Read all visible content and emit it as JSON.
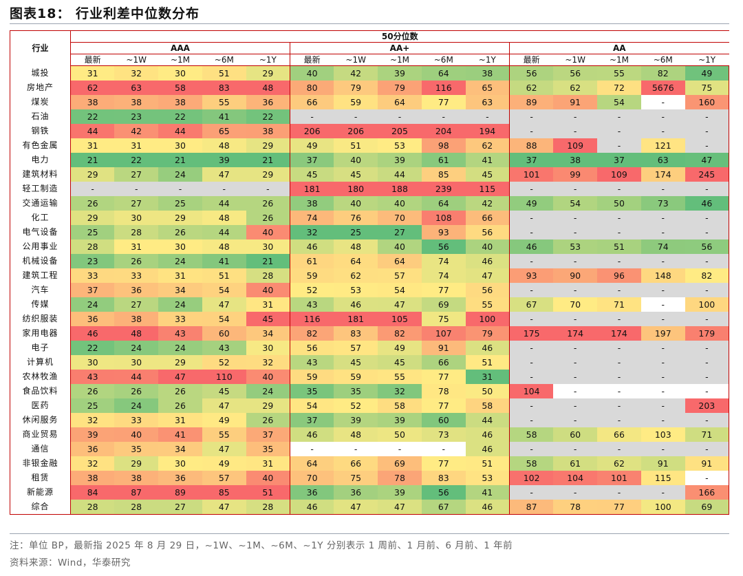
{
  "title": "图表18： 行业利差中位数分布",
  "table": {
    "top_header": "50分位数",
    "industry_header": "行业",
    "groups": [
      "AAA",
      "AA+",
      "AA"
    ],
    "sub_headers": [
      "最新",
      "~1W",
      "~1M",
      "~6M",
      "~1Y"
    ],
    "rows": [
      {
        "name": "城投",
        "AAA": [
          "31",
          "32",
          "30",
          "51",
          "29"
        ],
        "AAp": [
          "40",
          "42",
          "39",
          "64",
          "38"
        ],
        "AA": [
          "56",
          "56",
          "55",
          "82",
          "49"
        ]
      },
      {
        "name": "房地产",
        "AAA": [
          "62",
          "63",
          "58",
          "83",
          "48"
        ],
        "AAp": [
          "80",
          "79",
          "79",
          "116",
          "65"
        ],
        "AA": [
          "62",
          "62",
          "72",
          "5676",
          "75"
        ]
      },
      {
        "name": "煤炭",
        "AAA": [
          "38",
          "38",
          "38",
          "55",
          "36"
        ],
        "AAp": [
          "66",
          "59",
          "64",
          "77",
          "63"
        ],
        "AA": [
          "89",
          "91",
          "54",
          "-",
          "160"
        ]
      },
      {
        "name": "石油",
        "AAA": [
          "22",
          "23",
          "22",
          "41",
          "22"
        ],
        "AAp": [
          "-",
          "-",
          "-",
          "-",
          "-"
        ],
        "AA": [
          "-",
          "-",
          "-",
          "-",
          "-"
        ]
      },
      {
        "name": "钢铁",
        "AAA": [
          "44",
          "42",
          "44",
          "65",
          "38"
        ],
        "AAp": [
          "206",
          "206",
          "205",
          "204",
          "194"
        ],
        "AA": [
          "-",
          "-",
          "-",
          "-",
          "-"
        ]
      },
      {
        "name": "有色金属",
        "AAA": [
          "31",
          "31",
          "30",
          "48",
          "29"
        ],
        "AAp": [
          "49",
          "51",
          "53",
          "98",
          "62"
        ],
        "AA": [
          "88",
          "109",
          "-",
          "121",
          "-"
        ]
      },
      {
        "name": "电力",
        "AAA": [
          "21",
          "22",
          "21",
          "39",
          "21"
        ],
        "AAp": [
          "37",
          "40",
          "39",
          "61",
          "41"
        ],
        "AA": [
          "37",
          "38",
          "37",
          "63",
          "47"
        ]
      },
      {
        "name": "建筑材料",
        "AAA": [
          "29",
          "27",
          "24",
          "47",
          "29"
        ],
        "AAp": [
          "45",
          "45",
          "44",
          "85",
          "45"
        ],
        "AA": [
          "101",
          "99",
          "109",
          "174",
          "245"
        ]
      },
      {
        "name": "轻工制造",
        "AAA": [
          "-",
          "-",
          "-",
          "-",
          "-"
        ],
        "AAp": [
          "181",
          "180",
          "188",
          "239",
          "115"
        ],
        "AA": [
          "-",
          "-",
          "-",
          "-",
          "-"
        ]
      },
      {
        "name": "交通运输",
        "AAA": [
          "26",
          "27",
          "25",
          "44",
          "26"
        ],
        "AAp": [
          "38",
          "40",
          "40",
          "64",
          "42"
        ],
        "AA": [
          "49",
          "54",
          "50",
          "73",
          "46"
        ]
      },
      {
        "name": "化工",
        "AAA": [
          "29",
          "30",
          "29",
          "48",
          "26"
        ],
        "AAp": [
          "74",
          "76",
          "70",
          "108",
          "66"
        ],
        "AA": [
          "-",
          "-",
          "-",
          "-",
          "-"
        ]
      },
      {
        "name": "电气设备",
        "AAA": [
          "25",
          "28",
          "26",
          "44",
          "40"
        ],
        "AAp": [
          "32",
          "25",
          "27",
          "93",
          "56"
        ],
        "AA": [
          "-",
          "-",
          "-",
          "-",
          "-"
        ]
      },
      {
        "name": "公用事业",
        "AAA": [
          "28",
          "31",
          "30",
          "48",
          "30"
        ],
        "AAp": [
          "46",
          "48",
          "40",
          "56",
          "40"
        ],
        "AA": [
          "46",
          "53",
          "51",
          "74",
          "56"
        ]
      },
      {
        "name": "机械设备",
        "AAA": [
          "23",
          "26",
          "24",
          "41",
          "21"
        ],
        "AAp": [
          "61",
          "64",
          "64",
          "74",
          "46"
        ],
        "AA": [
          "-",
          "-",
          "-",
          "-",
          "-"
        ]
      },
      {
        "name": "建筑工程",
        "AAA": [
          "33",
          "33",
          "31",
          "51",
          "28"
        ],
        "AAp": [
          "59",
          "62",
          "57",
          "74",
          "47"
        ],
        "AA": [
          "93",
          "90",
          "96",
          "148",
          "82"
        ]
      },
      {
        "name": "汽车",
        "AAA": [
          "37",
          "36",
          "34",
          "54",
          "40"
        ],
        "AAp": [
          "52",
          "53",
          "54",
          "77",
          "56"
        ],
        "AA": [
          "-",
          "-",
          "-",
          "-",
          "-"
        ]
      },
      {
        "name": "传媒",
        "AAA": [
          "24",
          "27",
          "24",
          "47",
          "31"
        ],
        "AAp": [
          "43",
          "46",
          "47",
          "69",
          "55"
        ],
        "AA": [
          "67",
          "70",
          "71",
          "-",
          "100"
        ]
      },
      {
        "name": "纺织服装",
        "AAA": [
          "36",
          "38",
          "33",
          "54",
          "45"
        ],
        "AAp": [
          "116",
          "181",
          "105",
          "75",
          "100"
        ],
        "AA": [
          "-",
          "-",
          "-",
          "-",
          "-"
        ]
      },
      {
        "name": "家用电器",
        "AAA": [
          "46",
          "48",
          "43",
          "60",
          "34"
        ],
        "AAp": [
          "82",
          "83",
          "82",
          "107",
          "79"
        ],
        "AA": [
          "175",
          "174",
          "174",
          "197",
          "179"
        ]
      },
      {
        "name": "电子",
        "AAA": [
          "22",
          "24",
          "24",
          "43",
          "30"
        ],
        "AAp": [
          "56",
          "57",
          "49",
          "91",
          "46"
        ],
        "AA": [
          "-",
          "-",
          "-",
          "-",
          "-"
        ]
      },
      {
        "name": "计算机",
        "AAA": [
          "30",
          "30",
          "29",
          "52",
          "32"
        ],
        "AAp": [
          "43",
          "45",
          "45",
          "66",
          "51"
        ],
        "AA": [
          "-",
          "-",
          "-",
          "-",
          "-"
        ]
      },
      {
        "name": "农林牧渔",
        "AAA": [
          "43",
          "44",
          "47",
          "110",
          "40"
        ],
        "AAp": [
          "59",
          "59",
          "55",
          "77",
          "31"
        ],
        "AA": [
          "-",
          "-",
          "-",
          "-",
          "-"
        ]
      },
      {
        "name": "食品饮料",
        "AAA": [
          "26",
          "26",
          "26",
          "45",
          "24"
        ],
        "AAp": [
          "35",
          "35",
          "32",
          "78",
          "50"
        ],
        "AA": [
          "104",
          "-",
          "-",
          "-",
          "-"
        ]
      },
      {
        "name": "医药",
        "AAA": [
          "25",
          "24",
          "26",
          "47",
          "29"
        ],
        "AAp": [
          "54",
          "52",
          "58",
          "77",
          "58"
        ],
        "AA": [
          "-",
          "-",
          "-",
          "-",
          "203"
        ]
      },
      {
        "name": "休闲服务",
        "AAA": [
          "32",
          "33",
          "31",
          "49",
          "26"
        ],
        "AAp": [
          "37",
          "39",
          "39",
          "60",
          "44"
        ],
        "AA": [
          "-",
          "-",
          "-",
          "-",
          "-"
        ]
      },
      {
        "name": "商业贸易",
        "AAA": [
          "39",
          "40",
          "41",
          "55",
          "37"
        ],
        "AAp": [
          "46",
          "48",
          "50",
          "73",
          "46"
        ],
        "AA": [
          "58",
          "60",
          "66",
          "103",
          "71"
        ]
      },
      {
        "name": "通信",
        "AAA": [
          "36",
          "35",
          "34",
          "47",
          "35"
        ],
        "AAp": [
          "-",
          "-",
          "-",
          "-",
          "46"
        ],
        "AA": [
          "-",
          "-",
          "-",
          "-",
          "-"
        ]
      },
      {
        "name": "非银金融",
        "AAA": [
          "32",
          "29",
          "30",
          "49",
          "31"
        ],
        "AAp": [
          "64",
          "66",
          "69",
          "77",
          "51"
        ],
        "AA": [
          "58",
          "61",
          "62",
          "91",
          "91"
        ]
      },
      {
        "name": "租赁",
        "AAA": [
          "38",
          "38",
          "36",
          "57",
          "40"
        ],
        "AAp": [
          "70",
          "75",
          "78",
          "83",
          "53"
        ],
        "AA": [
          "102",
          "104",
          "101",
          "115",
          "-"
        ]
      },
      {
        "name": "新能源",
        "AAA": [
          "84",
          "87",
          "89",
          "85",
          "51"
        ],
        "AAp": [
          "36",
          "36",
          "39",
          "56",
          "41"
        ],
        "AA": [
          "-",
          "-",
          "-",
          "-",
          "166"
        ]
      },
      {
        "name": "综合",
        "AAA": [
          "28",
          "28",
          "27",
          "47",
          "28"
        ],
        "AAp": [
          "46",
          "47",
          "47",
          "67",
          "46"
        ],
        "AA": [
          "87",
          "78",
          "77",
          "100",
          "69"
        ]
      }
    ]
  },
  "note": "注：单位 BP，最新指 2025 年 8 月 29 日，~1W、~1M、~6M、~1Y 分别表示 1 周前、1 月前、6 月前、1 年前",
  "source": "资料来源：Wind，华泰研究",
  "colors": {
    "low": "#63be7b",
    "mid": "#ffeb84",
    "high": "#f8696b",
    "empty_gray": "#d9d9d9",
    "rule_red": "#c00000"
  }
}
